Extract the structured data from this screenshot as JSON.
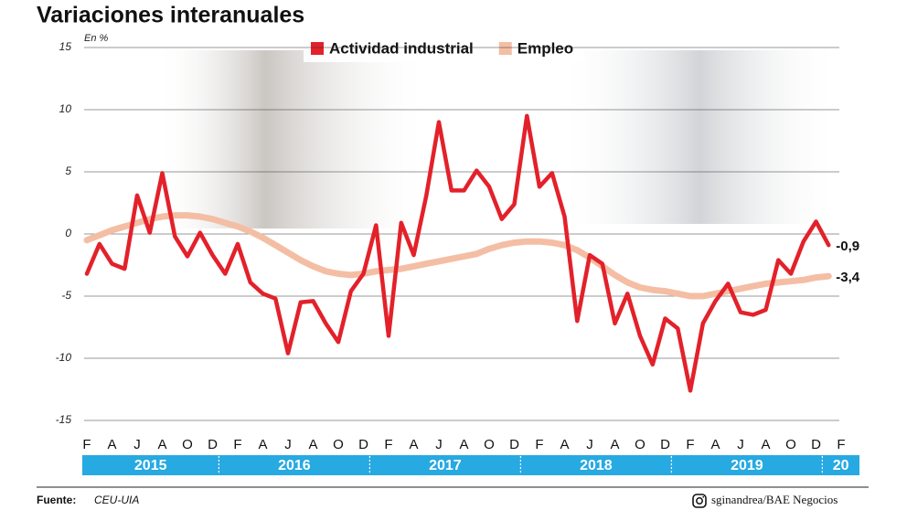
{
  "chart_data": {
    "type": "line",
    "title": "Variaciones interanuales",
    "y_unit": "En %",
    "categories": [
      "F",
      null,
      "A",
      null,
      "J",
      null,
      "A",
      null,
      "O",
      null,
      "D",
      null,
      "F",
      null,
      "A",
      null,
      "J",
      null,
      "A",
      null,
      "O",
      null,
      "D",
      null,
      "F",
      null,
      "A",
      null,
      "J",
      null,
      "A",
      null,
      "O",
      null,
      "D",
      null,
      "F",
      null,
      "A",
      null,
      "J",
      null,
      "A",
      null,
      "O",
      null,
      "D",
      null,
      "F",
      null,
      "A",
      null,
      "J",
      null,
      "A",
      null,
      "O",
      null,
      "D",
      null,
      "F"
    ],
    "year_labels": [
      "2015",
      "2016",
      "2017",
      "2018",
      "2019",
      "20"
    ],
    "series": [
      {
        "name": "Actividad industrial",
        "color": "#e3212a",
        "values": [
          -3.2,
          -0.8,
          -2.4,
          -2.8,
          3.1,
          0.1,
          4.9,
          -0.2,
          -1.8,
          0.1,
          -1.7,
          -3.2,
          -0.8,
          -3.9,
          -4.8,
          -5.2,
          -9.6,
          -5.5,
          -5.4,
          -7.2,
          -8.7,
          -4.6,
          -3.2,
          0.7,
          -8.2,
          0.9,
          -1.7,
          3.1,
          9.0,
          3.5,
          3.5,
          5.1,
          3.8,
          1.2,
          2.4,
          9.5,
          3.8,
          4.9,
          1.4,
          -7.0,
          -1.7,
          -2.4,
          -7.2,
          -4.8,
          -8.2,
          -10.5,
          -6.8,
          -7.6,
          -12.6,
          -7.2,
          -5.4,
          -4.0,
          -6.3,
          -6.5,
          -6.1,
          -2.1,
          -3.2,
          -0.6,
          1.0,
          -0.9,
          null
        ],
        "value_labels": [
          null,
          null,
          null,
          null,
          null,
          null,
          null,
          null,
          null,
          null,
          null,
          null,
          null,
          null,
          null,
          null,
          null,
          null,
          null,
          null,
          null,
          null,
          null,
          null,
          null,
          null,
          null,
          null,
          null,
          null,
          null,
          null,
          null,
          null,
          null,
          null,
          null,
          null,
          null,
          null,
          null,
          null,
          null,
          null,
          null,
          null,
          null,
          null,
          null,
          null,
          null,
          null,
          null,
          null,
          null,
          null,
          null,
          null,
          null,
          "-0,9",
          null
        ]
      },
      {
        "name": "Empleo",
        "color": "#f4bea4",
        "values": [
          -0.5,
          -0.1,
          0.3,
          0.6,
          0.9,
          1.2,
          1.4,
          1.5,
          1.5,
          1.4,
          1.2,
          0.9,
          0.6,
          0.2,
          -0.3,
          -0.9,
          -1.5,
          -2.1,
          -2.6,
          -3.0,
          -3.2,
          -3.3,
          -3.2,
          -3.0,
          -2.9,
          -2.8,
          -2.6,
          -2.4,
          -2.2,
          -2.0,
          -1.8,
          -1.6,
          -1.2,
          -0.9,
          -0.7,
          -0.6,
          -0.6,
          -0.7,
          -0.9,
          -1.3,
          -1.9,
          -2.6,
          -3.3,
          -3.9,
          -4.3,
          -4.5,
          -4.6,
          -4.8,
          -5.0,
          -5.0,
          -4.8,
          -4.6,
          -4.4,
          -4.2,
          -4.0,
          -3.9,
          -3.8,
          -3.7,
          -3.5,
          -3.4,
          null
        ],
        "value_labels": [
          null,
          null,
          null,
          null,
          null,
          null,
          null,
          null,
          null,
          null,
          null,
          null,
          null,
          null,
          null,
          null,
          null,
          null,
          null,
          null,
          null,
          null,
          null,
          null,
          null,
          null,
          null,
          null,
          null,
          null,
          null,
          null,
          null,
          null,
          null,
          null,
          null,
          null,
          null,
          null,
          null,
          null,
          null,
          null,
          null,
          null,
          null,
          null,
          null,
          null,
          null,
          null,
          null,
          null,
          null,
          null,
          null,
          null,
          null,
          "-3,4",
          null
        ]
      }
    ],
    "ylim": [
      -15,
      15
    ],
    "yticks": [
      -15,
      -10,
      -5,
      0,
      5,
      10,
      15
    ],
    "grid": true,
    "legend_position": "top",
    "source_label": "Fuente:",
    "source": "CEU-UIA",
    "credit": "sginandrea/BAE Negocios"
  }
}
